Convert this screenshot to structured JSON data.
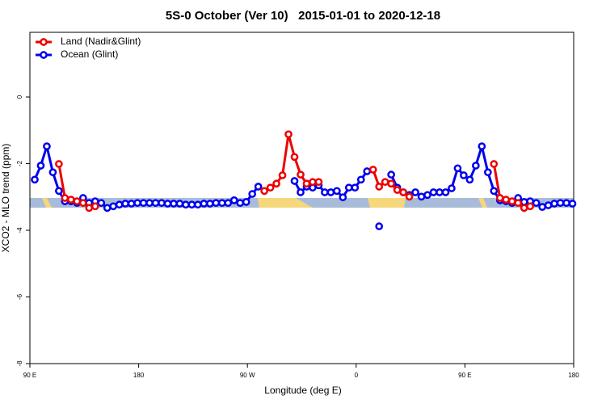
{
  "chart_data": {
    "type": "line",
    "title": "5S-0 October (Ver 10)   2015-01-01 to 2020-12-18",
    "x_label": "Longitude (deg E)",
    "y_label": "XCO2 - MLO trend (ppm)",
    "legend": "topleft",
    "x": [
      94,
      99,
      104,
      109,
      114,
      119,
      124,
      129,
      134,
      139,
      144,
      149,
      154,
      159,
      164,
      169,
      174,
      179,
      184,
      189,
      194,
      199,
      204,
      209,
      214,
      219,
      224,
      229,
      234,
      239,
      244,
      249,
      254,
      259,
      264,
      269,
      274,
      279,
      284,
      289,
      294,
      299,
      304,
      309,
      314,
      319,
      324,
      329,
      334,
      339,
      344,
      349,
      354,
      359,
      364,
      369,
      374,
      379,
      384,
      389,
      394,
      399,
      404,
      409,
      414,
      419,
      424,
      429,
      434,
      439,
      444,
      449,
      454,
      459,
      464,
      469,
      474,
      479,
      484,
      489,
      494,
      499,
      504,
      509,
      514,
      519,
      524,
      529,
      534,
      539
    ],
    "series": [
      {
        "name": "Land (Nadir&Glint)",
        "color": "#ee0000",
        "values": [
          null,
          null,
          null,
          null,
          -2.01,
          -3.03,
          -3.08,
          -3.13,
          -3.18,
          -3.33,
          -3.28,
          null,
          null,
          null,
          null,
          null,
          null,
          null,
          null,
          null,
          null,
          null,
          null,
          null,
          null,
          null,
          null,
          null,
          null,
          null,
          null,
          null,
          null,
          null,
          null,
          null,
          null,
          null,
          -2.82,
          -2.72,
          -2.6,
          -2.35,
          -1.12,
          -1.8,
          -2.33,
          -2.6,
          -2.55,
          -2.55,
          null,
          null,
          null,
          null,
          null,
          null,
          null,
          null,
          -2.18,
          -2.69,
          -2.55,
          -2.6,
          -2.79,
          -2.86,
          -2.99,
          null,
          null,
          null,
          null,
          null,
          null,
          null,
          null,
          null,
          null,
          null,
          null,
          null,
          -2.01,
          -3.03,
          -3.08,
          -3.13,
          -3.18,
          -3.33,
          -3.28,
          null,
          null,
          null,
          null,
          null,
          null,
          null
        ]
      },
      {
        "name": "Ocean (Glint)",
        "color": "#0000ee",
        "values": [
          -2.48,
          -2.06,
          -1.48,
          -2.26,
          -2.82,
          -3.13,
          -3.13,
          -3.18,
          -3.03,
          -3.18,
          -3.13,
          -3.18,
          -3.33,
          -3.28,
          -3.23,
          -3.2,
          -3.2,
          -3.18,
          -3.18,
          -3.18,
          -3.18,
          -3.18,
          -3.2,
          -3.2,
          -3.2,
          -3.23,
          -3.23,
          -3.23,
          -3.2,
          -3.2,
          -3.18,
          -3.18,
          -3.18,
          -3.1,
          -3.18,
          -3.15,
          -2.91,
          -2.69,
          null,
          null,
          null,
          null,
          null,
          -2.52,
          -2.86,
          -2.69,
          -2.72,
          -2.65,
          -2.86,
          -2.86,
          -2.82,
          -3.01,
          -2.72,
          -2.72,
          -2.48,
          -2.23,
          null,
          -3.88,
          null,
          -2.33,
          -2.72,
          -2.86,
          -2.94,
          -2.86,
          -2.99,
          -2.94,
          -2.86,
          -2.86,
          -2.86,
          -2.74,
          -2.14,
          -2.35,
          -2.48,
          -2.06,
          -1.48,
          -2.26,
          -2.82,
          -3.1,
          -3.13,
          -3.18,
          -3.03,
          -3.15,
          -3.13,
          -3.18,
          -3.3,
          -3.25,
          -3.2,
          -3.18,
          -3.18,
          -3.2
        ]
      }
    ],
    "xlim": [
      90,
      540
    ],
    "xticks": [
      {
        "value": 90,
        "label": "90 E"
      },
      180,
      {
        "value": 270,
        "label": "90 W"
      },
      {
        "value": 360,
        "label": "0"
      },
      {
        "value": 450,
        "label": "90 E"
      },
      {
        "value": 540,
        "label": "180"
      }
    ],
    "ylim": [
      -8,
      1.94
    ],
    "yticks": [
      0,
      -2,
      -4,
      -6,
      -8
    ]
  }
}
